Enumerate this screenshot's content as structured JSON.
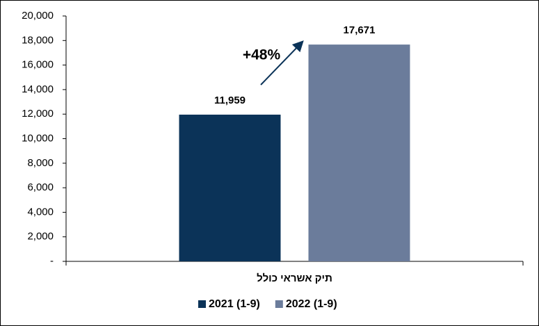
{
  "chart_data": {
    "type": "bar",
    "categories": [
      "תיק אשראי כולל"
    ],
    "series": [
      {
        "name": "2021 (1-9)",
        "color": "#0b3358",
        "values": [
          11959
        ],
        "value_labels": [
          "11,959"
        ]
      },
      {
        "name": "2022 (1-9)",
        "color": "#6b7c9b",
        "values": [
          17671
        ],
        "value_labels": [
          "17,671"
        ]
      }
    ],
    "annotation": "+48%",
    "ylim": [
      0,
      20000
    ],
    "yticks": [
      {
        "value": 0,
        "label": "-"
      },
      {
        "value": 2000,
        "label": "2,000"
      },
      {
        "value": 4000,
        "label": "4,000"
      },
      {
        "value": 6000,
        "label": "6,000"
      },
      {
        "value": 8000,
        "label": "8,000"
      },
      {
        "value": 10000,
        "label": "10,000"
      },
      {
        "value": 12000,
        "label": "12,000"
      },
      {
        "value": 14000,
        "label": "14,000"
      },
      {
        "value": 16000,
        "label": "16,000"
      },
      {
        "value": 18000,
        "label": "18,000"
      },
      {
        "value": 20000,
        "label": "20,000"
      }
    ],
    "legend": "bottom"
  }
}
